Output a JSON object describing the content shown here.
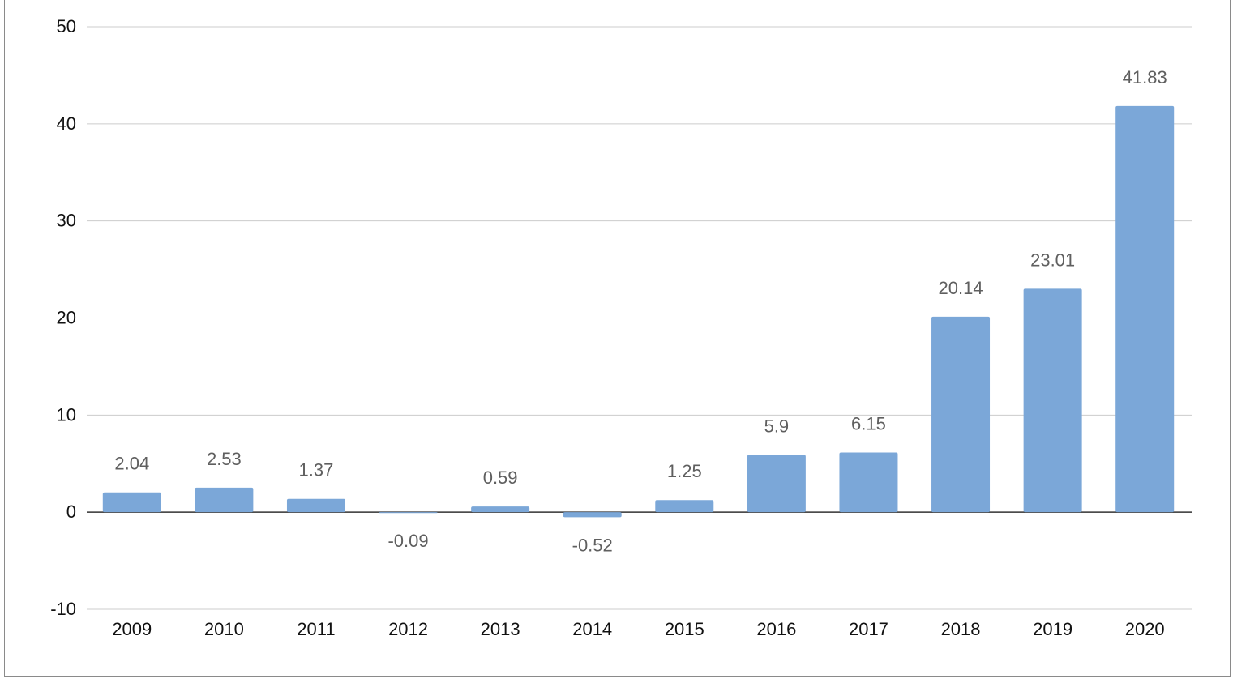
{
  "chart_data": {
    "type": "bar",
    "categories": [
      "2009",
      "2010",
      "2011",
      "2012",
      "2013",
      "2014",
      "2015",
      "2016",
      "2017",
      "2018",
      "2019",
      "2020"
    ],
    "values": [
      2.04,
      2.53,
      1.37,
      -0.09,
      0.59,
      -0.52,
      1.25,
      5.9,
      6.15,
      20.14,
      23.01,
      41.83
    ],
    "data_labels": [
      "2.04",
      "2.53",
      "1.37",
      "-0.09",
      "0.59",
      "-0.52",
      "1.25",
      "5.9",
      "6.15",
      "20.14",
      "23.01",
      "41.83"
    ],
    "title": "",
    "xlabel": "",
    "ylabel": "",
    "ylim": [
      -10,
      50
    ],
    "yticks": [
      -10,
      0,
      10,
      20,
      30,
      40,
      50
    ],
    "ytick_labels": [
      "-10",
      "0",
      "10",
      "20",
      "30",
      "40",
      "50"
    ],
    "grid": true,
    "legend": "none",
    "colors": {
      "bar": "#7ba7d8",
      "grid": "#cccccc",
      "zero_line": "#333333",
      "data_label": "#5f5f5f",
      "tick_label": "#111111"
    }
  }
}
